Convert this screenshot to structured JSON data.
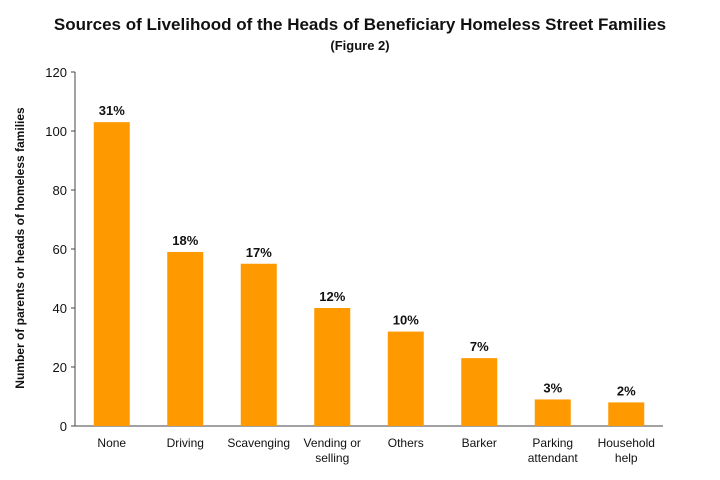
{
  "chart_data": {
    "type": "bar",
    "title": "Sources of Livelihood of the Heads of Beneficiary Homeless Street Families",
    "subtitle": "(Figure 2)",
    "xlabel": "",
    "ylabel": "Number of parents or heads of homeless families",
    "ylim": [
      0,
      120
    ],
    "yticks": [
      0,
      20,
      40,
      60,
      80,
      100,
      120
    ],
    "grid": false,
    "legend": "none",
    "bar_color": "#FF9900",
    "categories": [
      [
        "None"
      ],
      [
        "Driving"
      ],
      [
        "Scavenging"
      ],
      [
        "Vending or",
        "selling"
      ],
      [
        "Others"
      ],
      [
        "Barker"
      ],
      [
        "Parking",
        "attendant"
      ],
      [
        "Household",
        "help"
      ]
    ],
    "values": [
      103,
      59,
      55,
      40,
      32,
      23,
      9,
      8
    ],
    "data_labels": [
      "31%",
      "18%",
      "17%",
      "12%",
      "10%",
      "7%",
      "3%",
      "2%"
    ]
  }
}
